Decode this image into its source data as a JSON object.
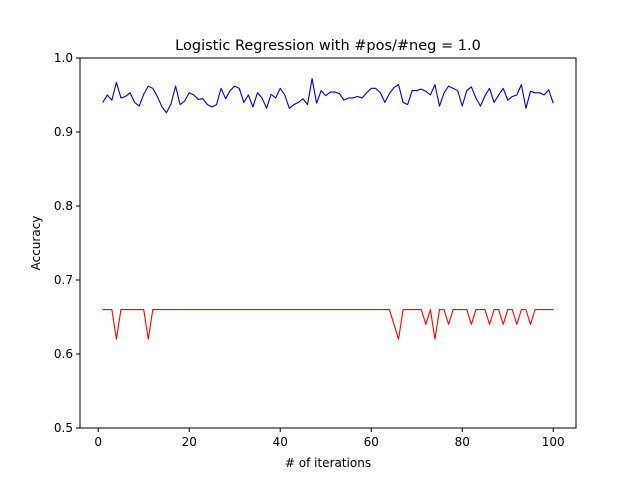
{
  "chart_data": {
    "type": "line",
    "title": "Logistic Regression with #pos/#neg = 1.0",
    "xlabel": "# of iterations",
    "ylabel": "Accuracy",
    "xlim": [
      -4,
      105
    ],
    "ylim": [
      0.5,
      1.0
    ],
    "xticks": [
      0,
      20,
      40,
      60,
      80,
      100
    ],
    "yticks": [
      0.5,
      0.6,
      0.7,
      0.8,
      0.9,
      1.0
    ],
    "grid": false,
    "legend": "none",
    "x_start": 1,
    "x_step": 1,
    "series": [
      {
        "color": "#0000cc",
        "values": [
          0.94,
          0.95,
          0.943,
          0.967,
          0.946,
          0.948,
          0.953,
          0.94,
          0.935,
          0.951,
          0.962,
          0.959,
          0.948,
          0.934,
          0.926,
          0.938,
          0.962,
          0.937,
          0.942,
          0.953,
          0.95,
          0.944,
          0.945,
          0.937,
          0.934,
          0.937,
          0.959,
          0.945,
          0.956,
          0.962,
          0.959,
          0.94,
          0.95,
          0.934,
          0.953,
          0.946,
          0.932,
          0.951,
          0.946,
          0.959,
          0.95,
          0.932,
          0.937,
          0.94,
          0.945,
          0.937,
          0.972,
          0.939,
          0.956,
          0.949,
          0.954,
          0.954,
          0.952,
          0.943,
          0.946,
          0.946,
          0.948,
          0.946,
          0.953,
          0.959,
          0.959,
          0.953,
          0.94,
          0.952,
          0.96,
          0.964,
          0.94,
          0.937,
          0.956,
          0.956,
          0.958,
          0.955,
          0.95,
          0.964,
          0.935,
          0.953,
          0.962,
          0.959,
          0.956,
          0.935,
          0.956,
          0.961,
          0.946,
          0.935,
          0.949,
          0.959,
          0.94,
          0.95,
          0.959,
          0.943,
          0.948,
          0.95,
          0.964,
          0.932,
          0.955,
          0.953,
          0.953,
          0.95,
          0.957,
          0.939
        ]
      },
      {
        "color": "#ff0000",
        "values": [
          0.66,
          0.66,
          0.66,
          0.62,
          0.66,
          0.66,
          0.66,
          0.66,
          0.66,
          0.66,
          0.62,
          0.66,
          0.66,
          0.66,
          0.66,
          0.66,
          0.66,
          0.66,
          0.66,
          0.66,
          0.66,
          0.66,
          0.66,
          0.66,
          0.66,
          0.66,
          0.66,
          0.66,
          0.66,
          0.66,
          0.66,
          0.66,
          0.66,
          0.66,
          0.66,
          0.66,
          0.66,
          0.66,
          0.66,
          0.66,
          0.66,
          0.66,
          0.66,
          0.66,
          0.66,
          0.66,
          0.66,
          0.66,
          0.66,
          0.66,
          0.66,
          0.66,
          0.66,
          0.66,
          0.66,
          0.66,
          0.66,
          0.66,
          0.66,
          0.66,
          0.66,
          0.66,
          0.66,
          0.66,
          0.64,
          0.62,
          0.66,
          0.66,
          0.66,
          0.66,
          0.66,
          0.64,
          0.66,
          0.62,
          0.66,
          0.66,
          0.64,
          0.66,
          0.66,
          0.66,
          0.66,
          0.64,
          0.66,
          0.66,
          0.66,
          0.64,
          0.66,
          0.66,
          0.64,
          0.66,
          0.66,
          0.64,
          0.66,
          0.66,
          0.64,
          0.66,
          0.66,
          0.66,
          0.66,
          0.66
        ]
      }
    ]
  }
}
